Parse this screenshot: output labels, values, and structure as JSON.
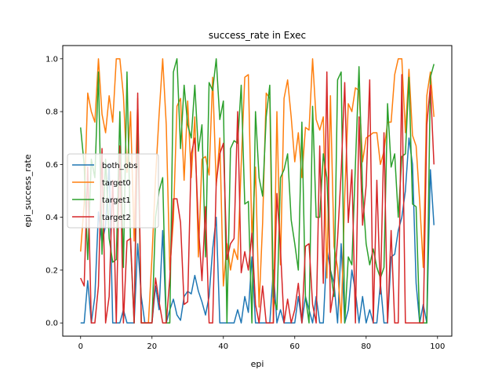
{
  "chart_data": {
    "type": "line",
    "title": "success_rate in Exec",
    "xlabel": "epi",
    "ylabel": "epi_success_rate",
    "xlim": [
      -5,
      104
    ],
    "ylim": [
      -0.05,
      1.05
    ],
    "xticks": [
      0,
      20,
      40,
      60,
      80,
      100
    ],
    "yticks": [
      0.0,
      0.2,
      0.4,
      0.6,
      0.8,
      1.0
    ],
    "xtick_labels": [
      "0",
      "20",
      "40",
      "60",
      "80",
      "100"
    ],
    "ytick_labels": [
      "0.0",
      "0.2",
      "0.4",
      "0.6",
      "0.8",
      "1.0"
    ],
    "grid": false,
    "legend_position": "center-left",
    "series": [
      {
        "name": "both_obs",
        "color": "#1f77b4",
        "values": [
          0.0,
          0.0,
          0.16,
          0.0,
          0.1,
          0.42,
          0.3,
          0.37,
          0.6,
          0.0,
          0.0,
          0.0,
          0.05,
          0.0,
          0.0,
          0.0,
          0.3,
          0.1,
          0.0,
          0.0,
          0.0,
          0.14,
          0.05,
          0.35,
          0.0,
          0.05,
          0.09,
          0.03,
          0.01,
          0.1,
          0.12,
          0.11,
          0.18,
          0.12,
          0.08,
          0.03,
          0.1,
          0.28,
          0.4,
          0.0,
          0.0,
          0.0,
          0.0,
          0.0,
          0.05,
          0.0,
          0.1,
          0.04,
          0.25,
          0.0,
          0.0,
          0.0,
          0.0,
          0.0,
          0.2,
          0.0,
          0.05,
          0.0,
          0.0,
          0.0,
          0.0,
          0.1,
          0.0,
          0.1,
          0.05,
          0.0,
          0.1,
          0.0,
          0.0,
          0.28,
          0.2,
          0.15,
          0.0,
          0.3,
          0.0,
          0.05,
          0.2,
          0.12,
          0.0,
          0.1,
          0.0,
          0.05,
          0.0,
          0.0,
          0.15,
          0.0,
          0.0,
          0.25,
          0.26,
          0.35,
          0.4,
          0.5,
          0.7,
          0.6,
          0.15,
          0.0,
          0.07,
          0.0,
          0.58,
          0.37
        ]
      },
      {
        "name": "target0",
        "color": "#ff7f0e",
        "values": [
          0.27,
          0.45,
          0.87,
          0.8,
          0.76,
          1.0,
          0.79,
          0.72,
          0.86,
          0.76,
          1.0,
          1.0,
          0.86,
          0.57,
          0.8,
          0.31,
          0.85,
          0.0,
          0.0,
          0.0,
          0.25,
          0.55,
          0.79,
          1.0,
          0.75,
          0.2,
          0.39,
          0.82,
          0.85,
          0.54,
          0.84,
          0.55,
          0.78,
          0.25,
          0.62,
          0.63,
          0.56,
          0.93,
          0.52,
          0.7,
          0.14,
          0.3,
          0.2,
          0.28,
          0.24,
          0.6,
          0.93,
          0.94,
          0.32,
          0.59,
          0.06,
          0.38,
          0.87,
          0.85,
          0.0,
          0.8,
          0.22,
          0.85,
          0.92,
          0.78,
          0.61,
          0.72,
          0.55,
          0.74,
          0.73,
          1.0,
          0.77,
          0.73,
          0.78,
          0.17,
          0.86,
          0.29,
          0.21,
          0.0,
          0.48,
          0.83,
          0.8,
          0.89,
          0.88,
          0.61,
          0.7,
          0.71,
          0.72,
          0.72,
          0.6,
          0.65,
          0.76,
          0.76,
          0.94,
          1.0,
          1.0,
          0.72,
          0.96,
          0.71,
          0.67,
          0.46,
          0.21,
          0.86,
          0.95,
          0.78
        ]
      },
      {
        "name": "target1",
        "color": "#2ca02c",
        "values": [
          0.74,
          0.6,
          0.24,
          0.62,
          0.55,
          0.95,
          0.26,
          0.62,
          0.32,
          0.23,
          0.24,
          0.8,
          0.21,
          0.95,
          0.3,
          0.0,
          0.76,
          0.0,
          0.0,
          0.0,
          0.0,
          0.4,
          0.5,
          0.55,
          0.0,
          0.0,
          0.95,
          1.0,
          0.66,
          0.9,
          0.75,
          0.7,
          0.9,
          0.65,
          0.75,
          0.25,
          0.91,
          0.88,
          1.0,
          0.77,
          0.84,
          0.0,
          0.66,
          0.69,
          0.68,
          0.9,
          0.45,
          0.46,
          0.0,
          0.8,
          0.55,
          0.48,
          0.78,
          0.9,
          0.1,
          0.05,
          0.55,
          0.58,
          0.64,
          0.39,
          0.3,
          0.2,
          0.76,
          0.1,
          0.0,
          0.82,
          0.4,
          0.4,
          0.64,
          0.55,
          0.2,
          0.1,
          0.92,
          0.95,
          0.0,
          0.25,
          0.22,
          0.6,
          0.97,
          0.5,
          0.3,
          0.22,
          0.28,
          0.21,
          0.17,
          0.21,
          0.83,
          0.59,
          0.64,
          0.4,
          0.63,
          0.64,
          0.93,
          0.45,
          0.44,
          0.0,
          0.0,
          0.0,
          0.93,
          0.98
        ]
      },
      {
        "name": "target2",
        "color": "#d62728",
        "values": [
          0.17,
          0.14,
          0.59,
          0.0,
          0.0,
          0.14,
          0.66,
          0.0,
          0.1,
          0.54,
          0.0,
          0.67,
          0.0,
          0.31,
          0.32,
          0.0,
          0.87,
          0.0,
          0.0,
          0.0,
          0.0,
          0.17,
          0.08,
          0.0,
          0.0,
          0.17,
          0.47,
          0.47,
          0.38,
          0.07,
          0.08,
          0.64,
          0.7,
          0.37,
          0.16,
          0.44,
          0.0,
          0.0,
          0.53,
          0.64,
          0.68,
          0.24,
          0.3,
          0.32,
          0.8,
          0.19,
          0.27,
          0.2,
          0.34,
          0.07,
          0.0,
          0.14,
          0.0,
          0.0,
          0.0,
          0.49,
          0.28,
          0.0,
          0.09,
          0.0,
          0.05,
          0.15,
          0.0,
          0.29,
          0.3,
          0.07,
          0.0,
          0.67,
          0.15,
          0.95,
          0.04,
          0.13,
          0.32,
          0.57,
          0.91,
          0.38,
          0.58,
          0.0,
          0.78,
          0.37,
          0.52,
          0.92,
          0.0,
          0.54,
          0.11,
          0.72,
          0.0,
          0.35,
          0.0,
          0.0,
          0.94,
          0.0,
          0.0,
          0.0,
          0.0,
          0.0,
          0.0,
          0.75,
          0.9,
          0.6
        ]
      }
    ]
  }
}
